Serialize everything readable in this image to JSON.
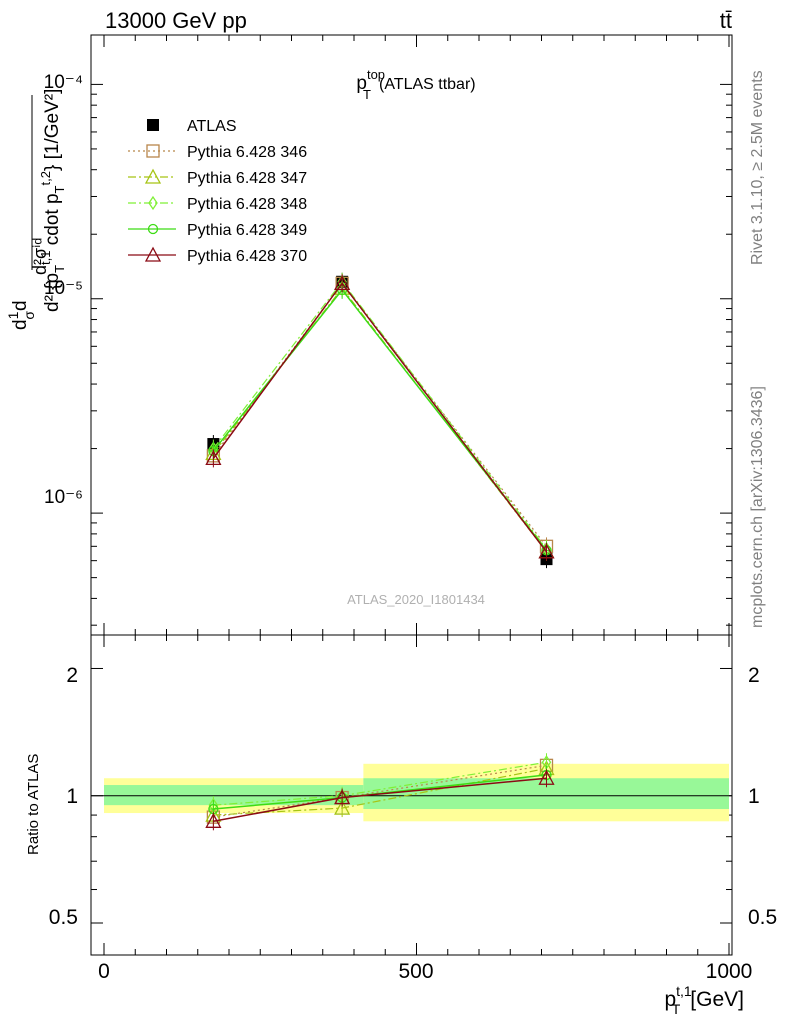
{
  "header": {
    "left": "13000 GeV pp",
    "right": "tt̄"
  },
  "side_labels": {
    "rivet": "Rivet 3.1.10, ≥ 2.5M events",
    "mcplots": "mcplots.cern.ch [arXiv:1306.3436]"
  },
  "colors": {
    "ATLAS": "#000000",
    "p346": "#b8864b",
    "p347": "#a6c414",
    "p348": "#7ff036",
    "p349": "#3cdc14",
    "p370": "#8b0a14",
    "band_inner": "#98f898",
    "band_outer": "#ffff99"
  },
  "chart_data": [
    {
      "type": "line",
      "title_main": "p",
      "title_sup": "top",
      "title_sub": "T",
      "title_rest": "(ATLAS ttbar)",
      "watermark": "ATLAS_2020_I1801434",
      "ylabel": "d²σᶦᵈ / dσ d² {pT t,1 cdot pT t,2} [1/GeV²]",
      "y_ticks": [
        "10⁻⁴",
        "10⁻⁵",
        "10⁻⁶"
      ],
      "y_scale": "log",
      "xlim": [
        -25,
        1000
      ],
      "ylim": [
        2.7e-07,
        0.00017
      ],
      "legend_placement": "top-left",
      "x": [
        175,
        381,
        708
      ],
      "series": [
        {
          "name": "ATLAS",
          "color_key": "ATLAS",
          "marker": "square-filled",
          "line": "none",
          "values": [
            2.1e-06,
            1.2e-05,
            6.1e-07
          ]
        },
        {
          "name": "Pythia 6.428 346",
          "color_key": "p346",
          "marker": "open-square",
          "line": "dotted",
          "values": [
            1.85e-06,
            1.18e-05,
            7e-07
          ]
        },
        {
          "name": "Pythia 6.428 347",
          "color_key": "p347",
          "marker": "open-triangle",
          "line": "dashdot",
          "values": [
            1.9e-06,
            1.12e-05,
            6.6e-07
          ]
        },
        {
          "name": "Pythia 6.428 348",
          "color_key": "p348",
          "marker": "open-diamond",
          "line": "dashdot",
          "values": [
            2e-06,
            1.2e-05,
            6.8e-07
          ]
        },
        {
          "name": "Pythia 6.428 349",
          "color_key": "p349",
          "marker": "open-circle",
          "line": "solid",
          "values": [
            1.95e-06,
            1.1e-05,
            6.7e-07
          ]
        },
        {
          "name": "Pythia 6.428 370",
          "color_key": "p370",
          "marker": "open-triangle",
          "line": "solid",
          "values": [
            1.8e-06,
            1.18e-05,
            6.6e-07
          ]
        }
      ]
    },
    {
      "type": "line",
      "ylabel": "Ratio to ATLAS",
      "xlabel_main": "p",
      "xlabel_sup": "t,1",
      "xlabel_sub": "T",
      "xlabel_unit": "[GeV]",
      "x_ticks": [
        "0",
        "500",
        "1000"
      ],
      "y_ticks": [
        "0.5",
        "1",
        "2"
      ],
      "y_scale": "log",
      "ylim": [
        0.42,
        2.4
      ],
      "xlim": [
        -25,
        1000
      ],
      "reference_line": 1,
      "bands": [
        {
          "x_range": [
            0,
            415
          ],
          "inner": [
            0.95,
            1.06
          ],
          "outer": [
            0.91,
            1.1
          ]
        },
        {
          "x_range": [
            415,
            1000
          ],
          "inner": [
            0.93,
            1.1
          ],
          "outer": [
            0.87,
            1.19
          ]
        }
      ],
      "x": [
        175,
        381,
        708
      ],
      "series": [
        {
          "name": "Pythia 6.428 346",
          "color_key": "p346",
          "marker": "open-square",
          "line": "dotted",
          "values": [
            0.89,
            0.99,
            1.18
          ]
        },
        {
          "name": "Pythia 6.428 347",
          "color_key": "p347",
          "marker": "open-triangle",
          "line": "dashdot",
          "values": [
            0.9,
            0.935,
            1.16
          ]
        },
        {
          "name": "Pythia 6.428 348",
          "color_key": "p348",
          "marker": "open-diamond",
          "line": "dashdot",
          "values": [
            0.95,
            1.0,
            1.2
          ]
        },
        {
          "name": "Pythia 6.428 349",
          "color_key": "p349",
          "marker": "open-circle",
          "line": "solid",
          "values": [
            0.93,
            0.99,
            1.12
          ]
        },
        {
          "name": "Pythia 6.428 370",
          "color_key": "p370",
          "marker": "open-triangle",
          "line": "solid",
          "values": [
            0.87,
            0.99,
            1.1
          ]
        }
      ]
    }
  ]
}
